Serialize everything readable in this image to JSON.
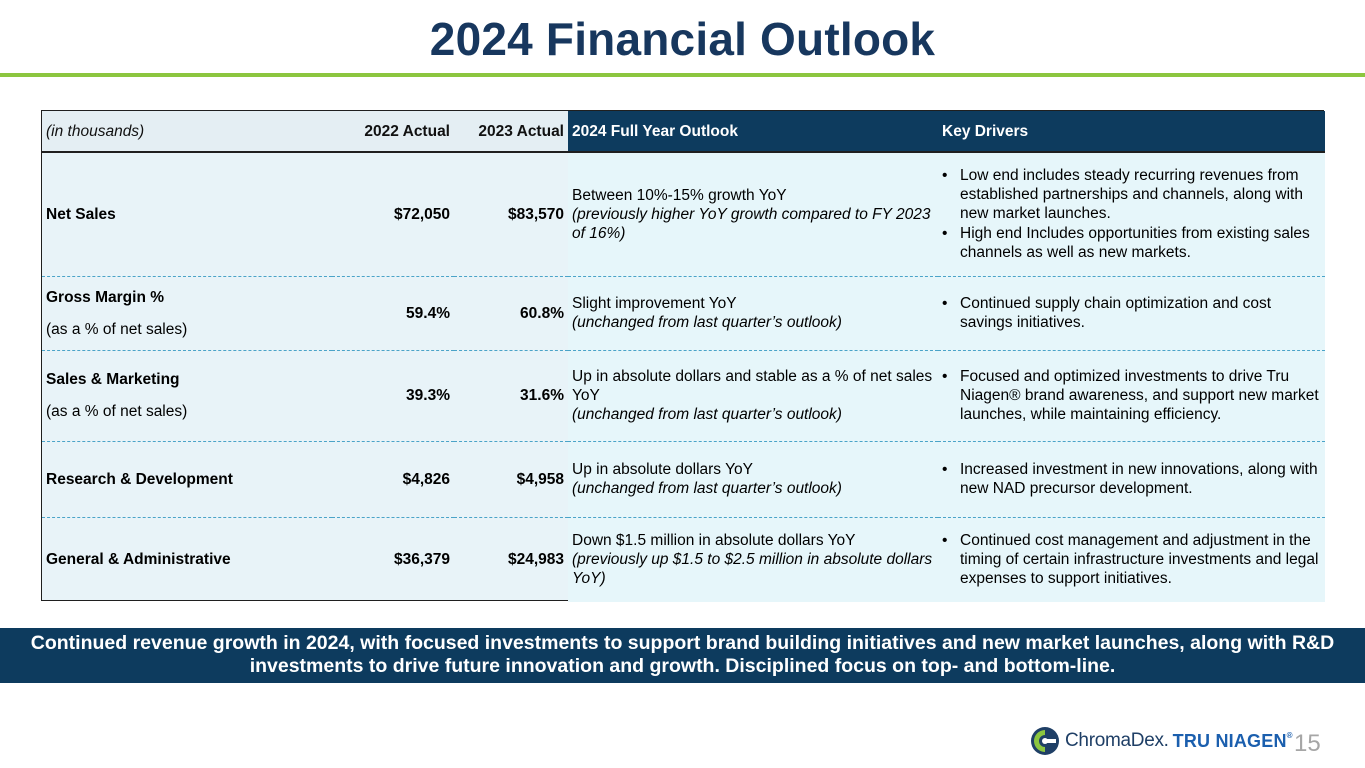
{
  "title": "2024 Financial Outlook",
  "table": {
    "headers": {
      "units": "(in thousands)",
      "col_2022": "2022 Actual",
      "col_2023": "2023 Actual",
      "col_outlook": "2024 Full Year Outlook",
      "col_drivers": "Key Drivers"
    },
    "rows": [
      {
        "label": "Net Sales",
        "sub": "",
        "v2022": "$72,050",
        "v2023": "$83,570",
        "outlook": "Between 10%-15% growth YoY",
        "outlook_note": "(previously higher YoY growth compared to FY 2023 of 16%)",
        "drivers": [
          "Low end includes steady recurring revenues from established partnerships and channels, along with new market launches.",
          "High end Includes opportunities from existing sales channels as well as new markets."
        ]
      },
      {
        "label": "Gross Margin %",
        "sub": "(as a % of net sales)",
        "v2022": "59.4%",
        "v2023": "60.8%",
        "outlook": "Slight improvement YoY",
        "outlook_note": "(unchanged from last quarter’s outlook)",
        "drivers": [
          "Continued supply chain optimization and cost savings initiatives."
        ]
      },
      {
        "label": "Sales & Marketing",
        "sub": "(as a % of net sales)",
        "v2022": "39.3%",
        "v2023": "31.6%",
        "outlook": "Up in absolute dollars and stable as a % of net sales YoY",
        "outlook_note": "(unchanged from last quarter’s outlook)",
        "drivers": [
          "Focused and optimized investments to drive Tru Niagen® brand awareness, and support new market launches, while maintaining efficiency."
        ]
      },
      {
        "label": "Research & Development",
        "sub": "",
        "v2022": "$4,826",
        "v2023": "$4,958",
        "outlook": "Up in absolute dollars YoY",
        "outlook_note": "(unchanged from last quarter’s outlook)",
        "drivers": [
          "Increased investment in new innovations, along with new NAD precursor development."
        ]
      },
      {
        "label": "General & Administrative",
        "sub": "",
        "v2022": "$36,379",
        "v2023": "$24,983",
        "outlook": "Down $1.5 million in absolute dollars YoY",
        "outlook_note": "(previously up $1.5 to $2.5 million in absolute dollars YoY)",
        "drivers": [
          "Continued cost management and adjustment in the timing of certain infrastructure investments and legal expenses to support initiatives."
        ]
      }
    ]
  },
  "banner": "Continued revenue growth in 2024, with focused investments to support brand building initiatives and new market launches, along with R&D investments to drive future innovation and growth.  Disciplined focus on top- and bottom-line.",
  "footer": {
    "logo_chroma": "ChromaDex.",
    "logo_tru": "TRU NIAGEN",
    "logo_tm": "®",
    "page_number": "15"
  },
  "colors": {
    "title": "#17375e",
    "accent_rule": "#8cc63f",
    "header_dark": "#0d3b5e",
    "banner": "#0d3b5e",
    "logo_blue": "#1b5fae"
  },
  "icons": [
    "chromadex-logo-icon"
  ]
}
